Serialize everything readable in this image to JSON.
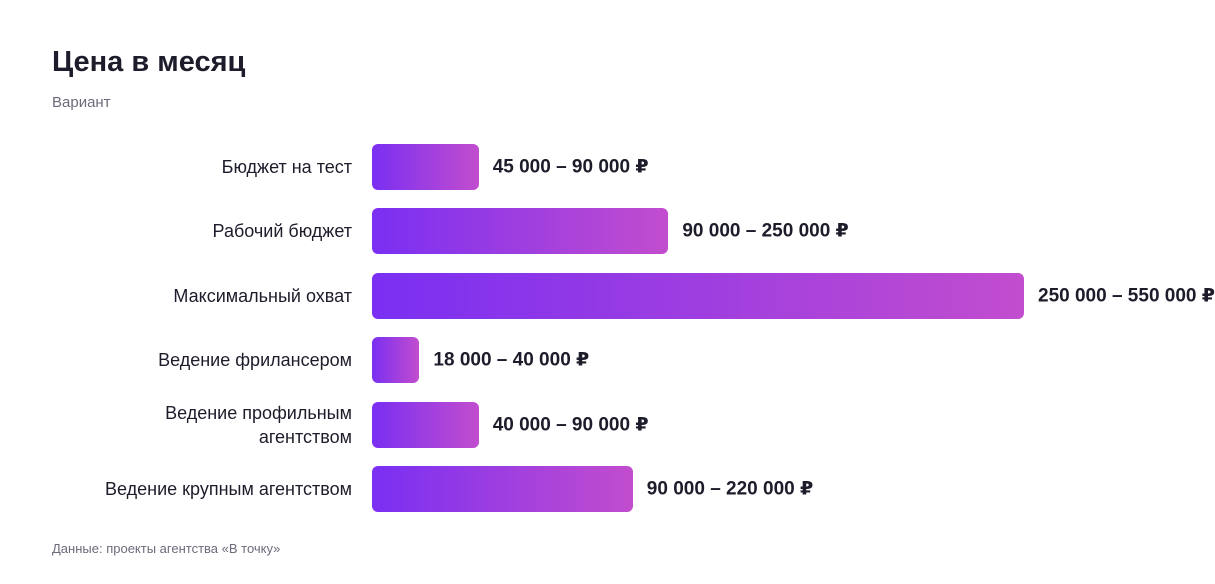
{
  "chart_data": {
    "type": "range-bar",
    "title": "Цена в месяц",
    "subtitle": "Вариант",
    "categories": [
      "Бюджет на тест",
      "Рабочий бюджет",
      "Максимальный охват",
      "Ведение фрилансером",
      "Ведение профильным агентством",
      "Ведение крупным агентством"
    ],
    "values": [
      [
        45000,
        90000
      ],
      [
        90000,
        250000
      ],
      [
        250000,
        550000
      ],
      [
        18000,
        40000
      ],
      [
        40000,
        90000
      ],
      [
        90000,
        220000
      ]
    ],
    "value_labels": [
      "45 000 – 90 000 ₽",
      "90 000 – 250 000 ₽",
      "250 000 – 550 000 ₽",
      "18 000 – 40 000 ₽",
      "40 000 – 90 000 ₽",
      "90 000 – 220 000 ₽"
    ],
    "gradient": [
      "#7a2ff2",
      "#c24dce"
    ],
    "source": "Данные: проекты агентства «В точку»"
  }
}
